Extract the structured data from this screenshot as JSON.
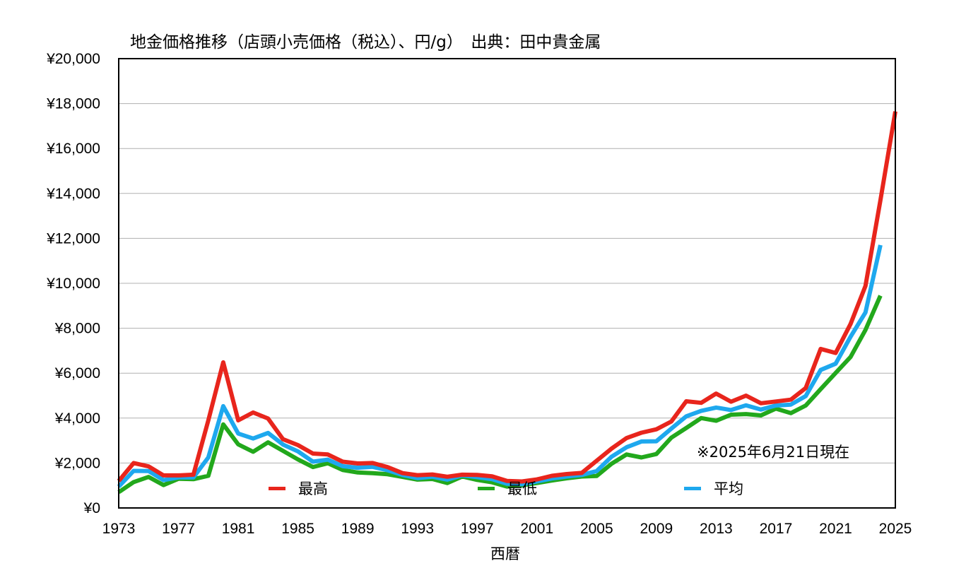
{
  "chart_data": {
    "type": "line",
    "title": "地金価格推移（店頭小売価格（税込）、円/g）　出典：田中貴金属",
    "xlabel": "西暦",
    "ylabel": "",
    "note": "※2025年6月21日現在",
    "xlim": [
      1973,
      2025
    ],
    "ylim": [
      0,
      20000
    ],
    "grid": true,
    "y_ticks": [
      0,
      2000,
      4000,
      6000,
      8000,
      10000,
      12000,
      14000,
      16000,
      18000,
      20000
    ],
    "y_tick_labels": [
      "¥0",
      "¥2,000",
      "¥4,000",
      "¥6,000",
      "¥8,000",
      "¥10,000",
      "¥12,000",
      "¥14,000",
      "¥16,000",
      "¥18,000",
      "¥20,000"
    ],
    "x_ticks": [
      1973,
      1977,
      1981,
      1985,
      1989,
      1993,
      1997,
      2001,
      2005,
      2009,
      2013,
      2017,
      2021,
      2025
    ],
    "x_tick_labels": [
      "1973",
      "1977",
      "1981",
      "1985",
      "1989",
      "1993",
      "1997",
      "2001",
      "2005",
      "2009",
      "2013",
      "2017",
      "2021",
      "2025"
    ],
    "legend_position": "bottom",
    "series": [
      {
        "name": "最高",
        "color": "#e8251c",
        "x": [
          1973,
          1974,
          1975,
          1976,
          1977,
          1978,
          1979,
          1980,
          1981,
          1982,
          1983,
          1984,
          1985,
          1986,
          1987,
          1988,
          1989,
          1990,
          1991,
          1992,
          1993,
          1994,
          1995,
          1996,
          1997,
          1998,
          1999,
          2000,
          2001,
          2002,
          2003,
          2004,
          2005,
          2006,
          2007,
          2008,
          2009,
          2010,
          2011,
          2012,
          2013,
          2014,
          2015,
          2016,
          2017,
          2018,
          2019,
          2020,
          2021,
          2022,
          2023,
          2024,
          2025
        ],
        "values": [
          1200,
          2000,
          1850,
          1450,
          1450,
          1480,
          3900,
          6480,
          3900,
          4250,
          3980,
          3060,
          2800,
          2420,
          2380,
          2060,
          1980,
          2000,
          1820,
          1550,
          1460,
          1490,
          1390,
          1480,
          1470,
          1410,
          1200,
          1180,
          1270,
          1430,
          1510,
          1560,
          2100,
          2640,
          3110,
          3350,
          3500,
          3850,
          4750,
          4680,
          5090,
          4730,
          5000,
          4660,
          4740,
          4820,
          5340,
          7080,
          6900,
          8190,
          9880,
          13700,
          17650
        ]
      },
      {
        "name": "最低",
        "color": "#22a81c",
        "x": [
          1973,
          1974,
          1975,
          1976,
          1977,
          1978,
          1979,
          1980,
          1981,
          1982,
          1983,
          1984,
          1985,
          1986,
          1987,
          1988,
          1989,
          1990,
          1991,
          1992,
          1993,
          1994,
          1995,
          1996,
          1997,
          1998,
          1999,
          2000,
          2001,
          2002,
          2003,
          2004,
          2005,
          2006,
          2007,
          2008,
          2009,
          2010,
          2011,
          2012,
          2013,
          2014,
          2015,
          2016,
          2017,
          2018,
          2019,
          2020,
          2021,
          2022,
          2023,
          2024
        ],
        "values": [
          700,
          1150,
          1380,
          1020,
          1300,
          1280,
          1430,
          3720,
          2830,
          2500,
          2920,
          2540,
          2160,
          1820,
          1990,
          1690,
          1580,
          1550,
          1500,
          1380,
          1260,
          1290,
          1110,
          1400,
          1250,
          1140,
          950,
          1010,
          1110,
          1220,
          1320,
          1400,
          1420,
          1970,
          2380,
          2250,
          2400,
          3130,
          3560,
          4000,
          3880,
          4150,
          4180,
          4120,
          4420,
          4220,
          4560,
          5290,
          6010,
          6720,
          7920,
          9450
        ]
      },
      {
        "name": "平均",
        "color": "#1ea8ee",
        "x": [
          1973,
          1974,
          1975,
          1976,
          1977,
          1978,
          1979,
          1980,
          1981,
          1982,
          1983,
          1984,
          1985,
          1986,
          1987,
          1988,
          1989,
          1990,
          1991,
          1992,
          1993,
          1994,
          1995,
          1996,
          1997,
          1998,
          1999,
          2000,
          2001,
          2002,
          2003,
          2004,
          2005,
          2006,
          2007,
          2008,
          2009,
          2010,
          2011,
          2012,
          2013,
          2014,
          2015,
          2016,
          2017,
          2018,
          2019,
          2020,
          2021,
          2022,
          2023,
          2024
        ],
        "values": [
          950,
          1650,
          1640,
          1240,
          1360,
          1360,
          2250,
          4530,
          3310,
          3090,
          3340,
          2820,
          2520,
          2060,
          2150,
          1860,
          1790,
          1830,
          1680,
          1470,
          1330,
          1390,
          1260,
          1450,
          1370,
          1280,
          1080,
          1060,
          1180,
          1310,
          1400,
          1470,
          1640,
          2280,
          2700,
          2960,
          2970,
          3530,
          4080,
          4320,
          4470,
          4360,
          4570,
          4380,
          4560,
          4600,
          4980,
          6140,
          6420,
          7620,
          8700,
          11700
        ]
      }
    ]
  }
}
